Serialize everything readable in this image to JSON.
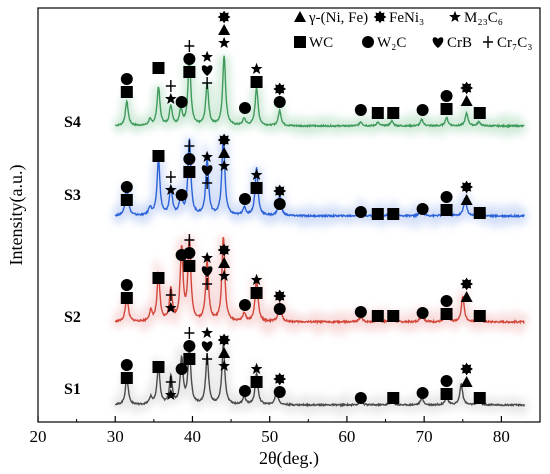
{
  "chart_data": {
    "type": "line",
    "xlabel": "2θ(deg.)",
    "ylabel": "Intensity(a.u.)",
    "xlim": [
      20,
      85
    ],
    "xticks": [
      20,
      30,
      40,
      50,
      60,
      70,
      80
    ],
    "grid": false,
    "legend_placement": "top-right",
    "legend": [
      {
        "symbol": "triangle",
        "label": "γ-(Ni, Fe)"
      },
      {
        "symbol": "cog",
        "label": "FeNi₃"
      },
      {
        "symbol": "star",
        "label": "M₂₃C₆"
      },
      {
        "symbol": "square",
        "label": "WC"
      },
      {
        "symbol": "circle",
        "label": "W₂C"
      },
      {
        "symbol": "heart",
        "label": "CrB"
      },
      {
        "symbol": "plus",
        "label": "Cr₇C₃"
      }
    ],
    "series": [
      {
        "name": "S4",
        "color": "#3f9a5c",
        "baseline": 0.0,
        "peaks": [
          [
            31.5,
            0.35
          ],
          [
            34.5,
            0.08
          ],
          [
            35.6,
            0.55
          ],
          [
            37.2,
            0.28
          ],
          [
            38.5,
            0.22
          ],
          [
            39.6,
            0.95
          ],
          [
            41.9,
            0.6
          ],
          [
            44.1,
            1.0
          ],
          [
            46.7,
            0.1
          ],
          [
            48.3,
            0.55
          ],
          [
            51.3,
            0.22
          ],
          [
            61.8,
            0.06
          ],
          [
            64.0,
            0.05
          ],
          [
            65.8,
            0.07
          ],
          [
            69.7,
            0.09
          ],
          [
            72.9,
            0.12
          ],
          [
            75.5,
            0.18
          ],
          [
            77.1,
            0.06
          ]
        ]
      },
      {
        "name": "S3",
        "color": "#2b62d8",
        "baseline": 0.0,
        "peaks": [
          [
            31.5,
            0.38
          ],
          [
            34.5,
            0.1
          ],
          [
            35.6,
            0.7
          ],
          [
            37.2,
            0.35
          ],
          [
            38.5,
            0.25
          ],
          [
            39.6,
            0.95
          ],
          [
            41.9,
            0.7
          ],
          [
            44.0,
            1.0
          ],
          [
            46.7,
            0.1
          ],
          [
            48.3,
            0.6
          ],
          [
            51.3,
            0.25
          ],
          [
            61.8,
            0.06
          ],
          [
            64.0,
            0.05
          ],
          [
            65.8,
            0.07
          ],
          [
            69.7,
            0.1
          ],
          [
            72.9,
            0.12
          ],
          [
            75.3,
            0.22
          ],
          [
            77.1,
            0.06
          ]
        ]
      },
      {
        "name": "S2",
        "color": "#d2473a",
        "baseline": 0.0,
        "peaks": [
          [
            31.5,
            0.3
          ],
          [
            34.6,
            0.12
          ],
          [
            35.6,
            0.55
          ],
          [
            37.2,
            0.38
          ],
          [
            38.6,
            0.85
          ],
          [
            39.6,
            0.95
          ],
          [
            41.9,
            0.72
          ],
          [
            44.0,
            1.0
          ],
          [
            46.7,
            0.1
          ],
          [
            48.3,
            0.5
          ],
          [
            51.3,
            0.22
          ],
          [
            61.8,
            0.06
          ],
          [
            64.0,
            0.05
          ],
          [
            65.8,
            0.07
          ],
          [
            69.7,
            0.1
          ],
          [
            72.9,
            0.12
          ],
          [
            75.0,
            0.3
          ],
          [
            77.1,
            0.06
          ]
        ]
      },
      {
        "name": "S1",
        "color": "#4a4a4a",
        "baseline": 0.0,
        "peaks": [
          [
            31.5,
            0.4
          ],
          [
            34.6,
            0.1
          ],
          [
            35.6,
            0.55
          ],
          [
            37.2,
            0.4
          ],
          [
            38.6,
            0.65
          ],
          [
            39.6,
            0.8
          ],
          [
            41.9,
            0.7
          ],
          [
            44.0,
            0.85
          ],
          [
            46.7,
            0.12
          ],
          [
            48.3,
            0.45
          ],
          [
            50.9,
            0.2
          ],
          [
            61.8,
            0.06
          ],
          [
            65.8,
            0.07
          ],
          [
            69.7,
            0.1
          ],
          [
            72.9,
            0.12
          ],
          [
            74.8,
            0.3
          ],
          [
            77.1,
            0.06
          ]
        ]
      }
    ]
  }
}
